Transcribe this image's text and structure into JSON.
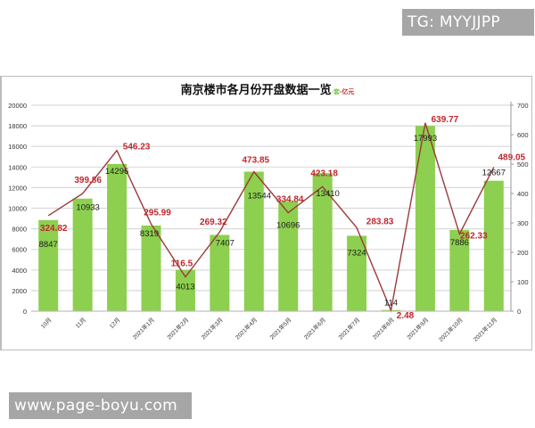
{
  "watermarks": {
    "top_right": "TG: MYYJJPP",
    "bottom_left": "www.page-boyu.com"
  },
  "colors": {
    "bar": "#8dcf4f",
    "line": "#9b3a3a",
    "line_label": "#c0272d",
    "bar_label": "#1a1a1a",
    "grid": "#d9d9d9",
    "legend_units_green": "#7cc44a",
    "legend_units_red": "#c0272d"
  },
  "chart_data": {
    "type": "bar+line",
    "title": "南京楼市各月份开盘数据一览",
    "legend": [
      {
        "name": "套",
        "marker": "-套",
        "type": "bar",
        "color": "#8dcf4f",
        "axis": "left"
      },
      {
        "name": "亿元",
        "marker": "-亿元",
        "type": "line",
        "color": "#9b3a3a",
        "axis": "right"
      }
    ],
    "categories": [
      "10月",
      "11月",
      "12月",
      "2021年1月",
      "2021年2月",
      "2021年3月",
      "2021年4月",
      "2021年5月",
      "2021年6月",
      "2021年7月",
      "2021年8月",
      "2021年9月",
      "2021年10月",
      "2021年11月"
    ],
    "series": [
      {
        "name": "套",
        "type": "bar",
        "axis": "left",
        "values": [
          8847,
          10933,
          14296,
          8319,
          4013,
          7407,
          13544,
          10696,
          13410,
          7324,
          114,
          17993,
          7886,
          12667
        ]
      },
      {
        "name": "亿元",
        "type": "line",
        "axis": "right",
        "values": [
          324.82,
          399.86,
          546.23,
          295.99,
          116.5,
          269.32,
          473.85,
          334.84,
          423.18,
          283.83,
          2.48,
          639.77,
          262.33,
          489.05
        ]
      }
    ],
    "y_left": {
      "ylim": [
        0,
        20000
      ],
      "ticks": [
        0,
        2000,
        4000,
        6000,
        8000,
        10000,
        12000,
        14000,
        16000,
        18000,
        20000
      ]
    },
    "y_right": {
      "ylim": [
        0,
        700
      ],
      "ticks": [
        0,
        100,
        200,
        300,
        400,
        500,
        600,
        700
      ]
    },
    "xlabel": "",
    "ylabel": "",
    "grid": true,
    "legend_position": "inline-after-title"
  }
}
